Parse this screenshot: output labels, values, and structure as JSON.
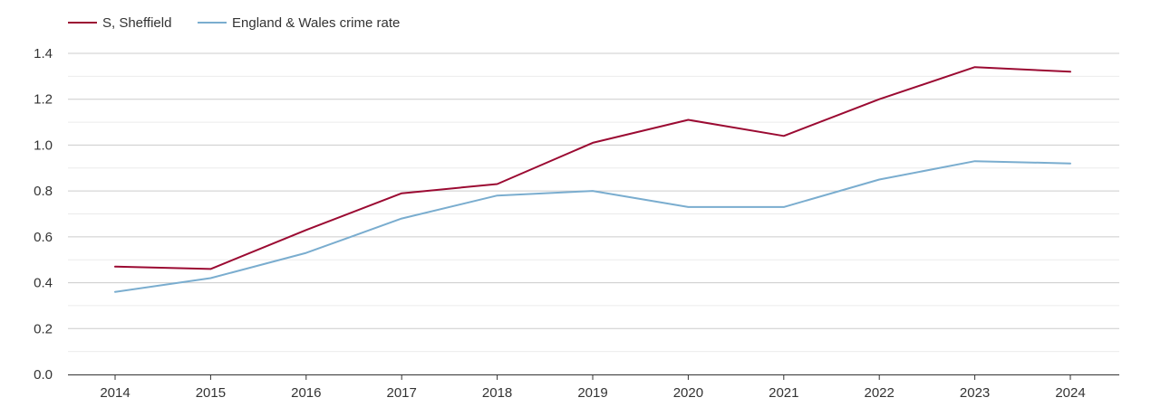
{
  "chart_data": {
    "type": "line",
    "title": "",
    "xlabel": "",
    "ylabel": "",
    "categories": [
      "2014",
      "2015",
      "2016",
      "2017",
      "2018",
      "2019",
      "2020",
      "2021",
      "2022",
      "2023",
      "2024"
    ],
    "ylim": [
      0,
      1.4
    ],
    "yticks": [
      "0.0",
      "0.2",
      "0.4",
      "0.6",
      "0.8",
      "1.0",
      "1.2",
      "1.4"
    ],
    "ytick_values": [
      0,
      0.2,
      0.4,
      0.6,
      0.8,
      1.0,
      1.2,
      1.4
    ],
    "grid": true,
    "legend_position": "top-left",
    "series": [
      {
        "name": "S, Sheffield",
        "color": "#9b0a32",
        "values": [
          0.47,
          0.46,
          0.63,
          0.79,
          0.83,
          1.01,
          1.11,
          1.04,
          1.2,
          1.34,
          1.32
        ]
      },
      {
        "name": "England & Wales crime rate",
        "color": "#7aadcf",
        "values": [
          0.36,
          0.42,
          0.53,
          0.68,
          0.78,
          0.8,
          0.73,
          0.73,
          0.85,
          0.93,
          0.92
        ]
      }
    ]
  }
}
